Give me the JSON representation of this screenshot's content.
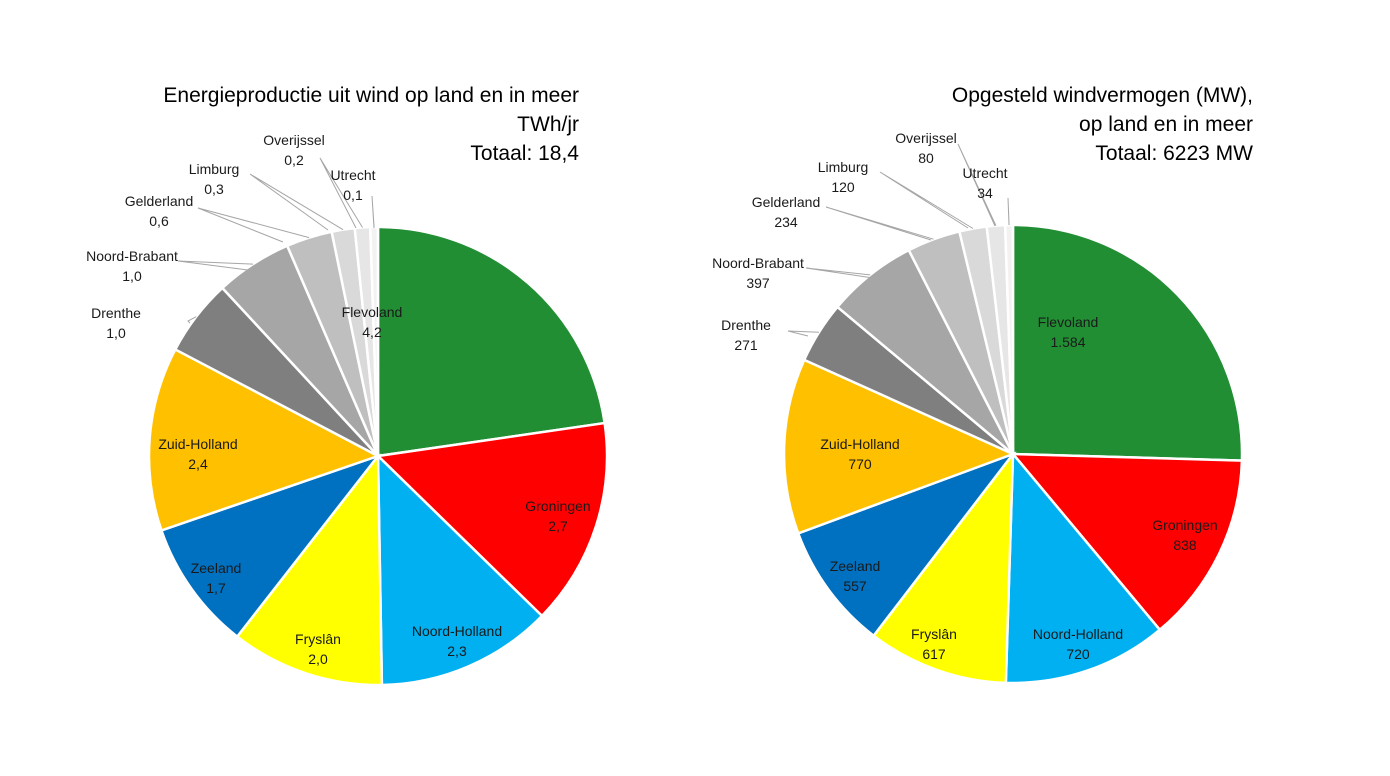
{
  "chart_data": [
    {
      "type": "pie",
      "title_lines": [
        "Energieproductie uit wind op land en in meer",
        "TWh/jr",
        "Totaal: 18,4"
      ],
      "categories": [
        "Flevoland",
        "Groningen",
        "Noord-Holland",
        "Fryslân",
        "Zeeland",
        "Zuid-Holland",
        "Drenthe",
        "Noord-Brabant",
        "Gelderland",
        "Limburg",
        "Overijssel",
        "Utrecht"
      ],
      "values": [
        4.2,
        2.7,
        2.3,
        2.0,
        1.7,
        2.4,
        1.0,
        1.0,
        0.6,
        0.3,
        0.2,
        0.1
      ],
      "value_labels": [
        "4,2",
        "2,7",
        "2,3",
        "2,0",
        "1,7",
        "2,4",
        "1,0",
        "1,0",
        "0,6",
        "0,3",
        "0,2",
        "0,1"
      ],
      "colors": [
        "#218E34",
        "#FF0000",
        "#00B0F0",
        "#FFFF00",
        "#0070C0",
        "#FFC000",
        "#7F7F7F",
        "#A6A6A6",
        "#BFBFBF",
        "#D9D9D9",
        "#E6E6E6",
        "#F2F2F2"
      ]
    },
    {
      "type": "pie",
      "title_lines": [
        "Opgesteld windvermogen (MW),",
        "op land en in meer",
        "Totaal: 6223 MW"
      ],
      "categories": [
        "Flevoland",
        "Groningen",
        "Noord-Holland",
        "Fryslân",
        "Zeeland",
        "Zuid-Holland",
        "Drenthe",
        "Noord-Brabant",
        "Gelderland",
        "Limburg",
        "Overijssel",
        "Utrecht"
      ],
      "values": [
        1584,
        838,
        720,
        617,
        557,
        770,
        271,
        397,
        234,
        120,
        80,
        34
      ],
      "value_labels": [
        "1.584",
        "838",
        "720",
        "617",
        "557",
        "770",
        "271",
        "397",
        "234",
        "120",
        "80",
        "34"
      ],
      "colors": [
        "#218E34",
        "#FF0000",
        "#00B0F0",
        "#FFFF00",
        "#0070C0",
        "#FFC000",
        "#7F7F7F",
        "#A6A6A6",
        "#BFBFBF",
        "#D9D9D9",
        "#E6E6E6",
        "#F2F2F2"
      ]
    }
  ]
}
